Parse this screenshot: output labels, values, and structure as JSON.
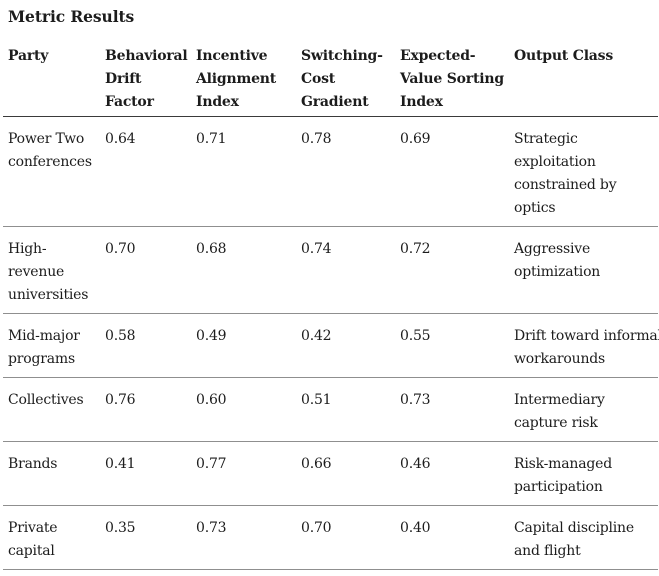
{
  "title": "Metric Results",
  "table": {
    "columns": [
      "Party",
      "Behavioral\nDrift\nFactor",
      "Incentive\nAlignment\nIndex",
      "Switching-\nCost\nGradient",
      "Expected-\nValue Sorting\nIndex",
      "Output Class"
    ],
    "rows": [
      [
        "Power Two\nconferences",
        "0.64",
        "0.71",
        "0.78",
        "0.69",
        "Strategic\nexploitation\nconstrained by\noptics"
      ],
      [
        "High-\nrevenue\nuniversities",
        "0.70",
        "0.68",
        "0.74",
        "0.72",
        "Aggressive\noptimization"
      ],
      [
        "Mid-major\nprograms",
        "0.58",
        "0.49",
        "0.42",
        "0.55",
        "Drift toward informal\nworkarounds"
      ],
      [
        "Collectives",
        "0.76",
        "0.60",
        "0.51",
        "0.73",
        "Intermediary\ncapture risk"
      ],
      [
        "Brands",
        "0.41",
        "0.77",
        "0.66",
        "0.46",
        "Risk-managed\nparticipation"
      ],
      [
        "Private\ncapital",
        "0.35",
        "0.73",
        "0.70",
        "0.40",
        "Capital discipline\nand flight"
      ]
    ]
  },
  "colors": {
    "text": "#1c1c1c",
    "header_rule": "#3a3a3a",
    "row_rule": "#8f8f8f",
    "background": "#ffffff"
  }
}
